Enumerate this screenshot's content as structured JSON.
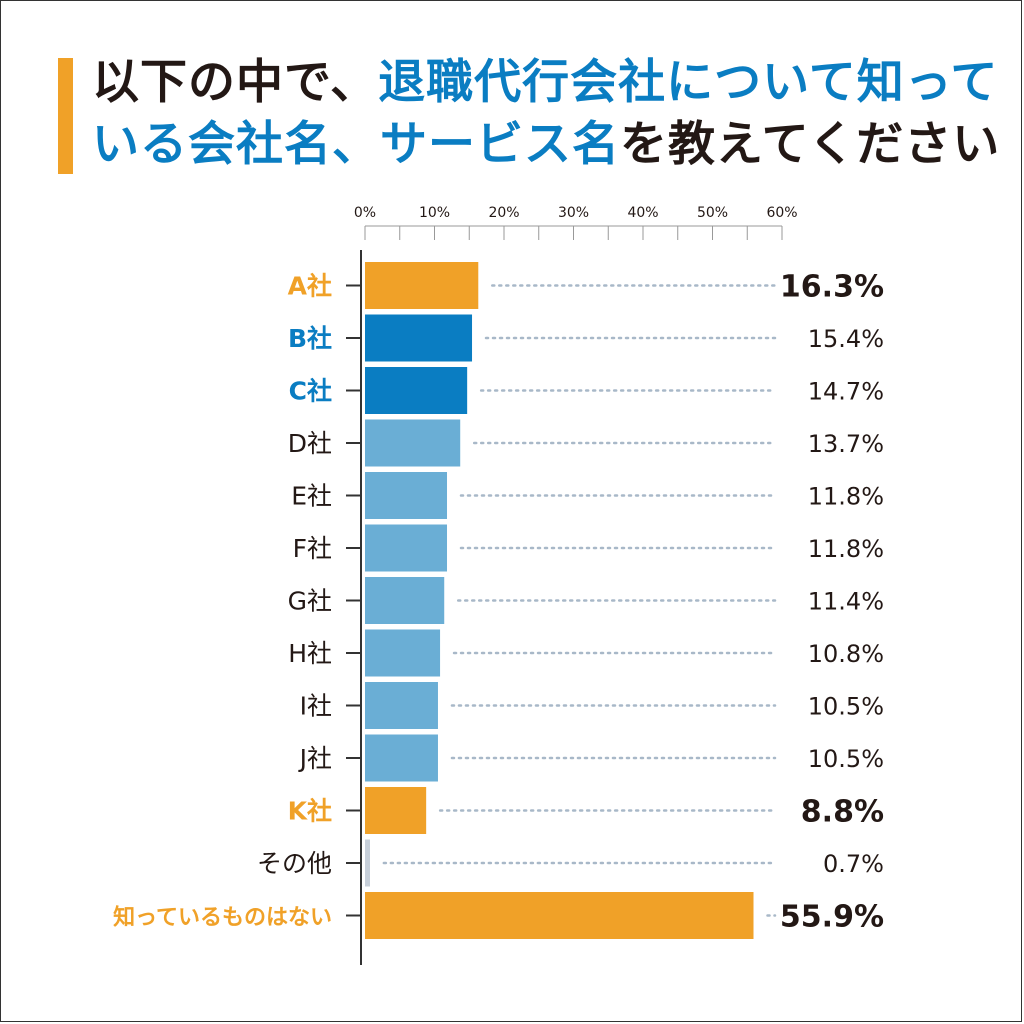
{
  "title": {
    "line1_part1": "以下の中で、",
    "line1_part2": "退職代行会社について知って",
    "line2_part1": "いる会社名、サービス名",
    "line2_part2": "を教えてください"
  },
  "colors": {
    "orange": "#f0a128",
    "blue": "#0a7dc2",
    "light_blue": "#6aaed5",
    "gray": "#c7cfd9",
    "text": "#231815",
    "dot": "#a8b8c8"
  },
  "chart_data": {
    "type": "bar",
    "orientation": "horizontal",
    "title": "以下の中で、退職代行会社について知っている会社名、サービス名を教えてください",
    "xlim": [
      0,
      60
    ],
    "tick_labels": [
      "0%",
      "10%",
      "20%",
      "30%",
      "40%",
      "50%",
      "60%"
    ],
    "categories": [
      "A社",
      "B社",
      "C社",
      "D社",
      "E社",
      "F社",
      "G社",
      "H社",
      "I社",
      "J社",
      "K社",
      "その他",
      "知っているものはない"
    ],
    "values": [
      16.3,
      15.4,
      14.7,
      13.7,
      11.8,
      11.8,
      11.4,
      10.8,
      10.5,
      10.5,
      8.8,
      0.7,
      55.9
    ],
    "value_labels": [
      "16.3%",
      "15.4%",
      "14.7%",
      "13.7%",
      "11.8%",
      "11.8%",
      "11.4%",
      "10.8%",
      "10.5%",
      "10.5%",
      "8.8%",
      "0.7%",
      "55.9%"
    ],
    "bar_colors": [
      "orange",
      "blue",
      "blue",
      "light_blue",
      "light_blue",
      "light_blue",
      "light_blue",
      "light_blue",
      "light_blue",
      "light_blue",
      "orange",
      "gray",
      "orange"
    ],
    "label_colors": [
      "orange",
      "blue",
      "blue",
      "text",
      "text",
      "text",
      "text",
      "text",
      "text",
      "text",
      "orange",
      "text",
      "orange"
    ],
    "emphasis": [
      "bold",
      "normal",
      "normal",
      "normal",
      "normal",
      "normal",
      "normal",
      "normal",
      "normal",
      "normal",
      "bold",
      "normal",
      "bold"
    ]
  }
}
